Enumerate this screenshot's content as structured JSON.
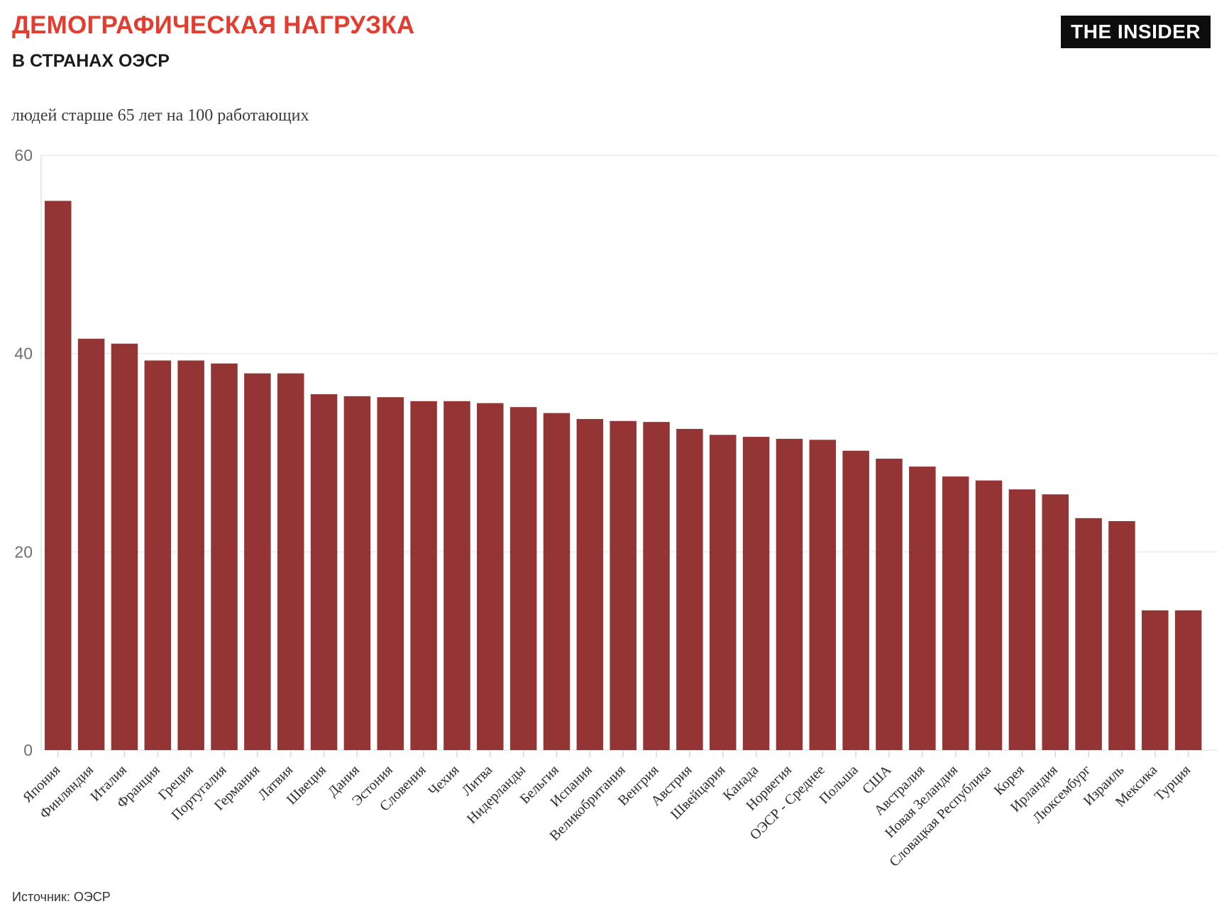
{
  "header": {
    "title": "ДЕМОГРАФИЧЕСКАЯ НАГРУЗКА",
    "subtitle": "В СТРАНАХ ОЭСР",
    "brand": "THE INSIDER"
  },
  "footer": {
    "source": "Источник: ОЭСР"
  },
  "colors": {
    "accent_red": "#e53c30",
    "bar": "#943434",
    "grid": "#ebebeb",
    "logo_bg": "#0d0d0d"
  },
  "chart_data": {
    "type": "bar",
    "title": "ДЕМОГРАФИЧЕСКАЯ НАГРУЗКА В СТРАНАХ ОЭСР",
    "ylabel": "людей старше 65 лет на 100 работающих",
    "xlabel": "",
    "ylim": [
      0,
      60
    ],
    "yticks": [
      0,
      20,
      40,
      60
    ],
    "grid": true,
    "legend": "none",
    "bar_color": "#943434",
    "categories": [
      "Япония",
      "Финляндия",
      "Италия",
      "Франция",
      "Греция",
      "Португалия",
      "Германия",
      "Латвия",
      "Швеция",
      "Дания",
      "Эстония",
      "Словения",
      "Чехия",
      "Литва",
      "Нидерланды",
      "Бельгия",
      "Испания",
      "Великобритания",
      "Венгрия",
      "Австрия",
      "Швейцария",
      "Канада",
      "Норвегия",
      "ОЭСР - Среднее",
      "Польша",
      "США",
      "Австралия",
      "Новая Зеландия",
      "Словацкая Республика",
      "Корея",
      "Ирландия",
      "Люксембург",
      "Израиль",
      "Мексика",
      "Турция"
    ],
    "values": [
      55.4,
      41.5,
      41.0,
      39.3,
      39.3,
      39.0,
      38.0,
      38.0,
      35.9,
      35.7,
      35.6,
      35.2,
      35.2,
      35.0,
      34.6,
      34.0,
      33.4,
      33.2,
      33.1,
      32.4,
      31.8,
      31.6,
      31.4,
      31.3,
      30.2,
      29.4,
      28.6,
      27.6,
      27.2,
      26.3,
      25.8,
      23.4,
      23.1,
      14.1,
      14.1
    ]
  }
}
